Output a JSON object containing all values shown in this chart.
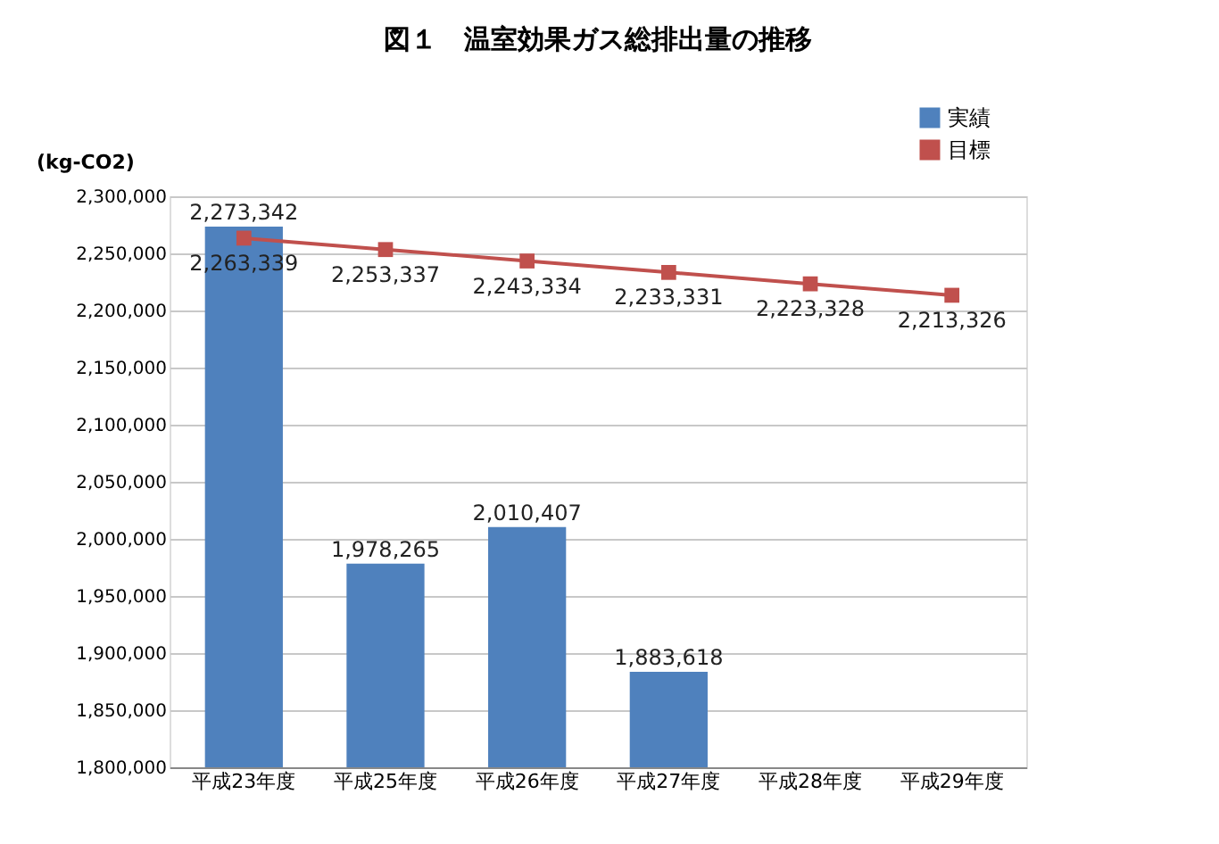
{
  "chart_data": {
    "type": "bar",
    "title": "図１　温室効果ガス総排出量の推移",
    "ylabel": "(kg-CO2)",
    "categories": [
      "平成23年度",
      "平成25年度",
      "平成26年度",
      "平成27年度",
      "平成28年度",
      "平成29年度"
    ],
    "series": [
      {
        "name": "実績",
        "color": "#4f81bd",
        "values": [
          2273342,
          1978265,
          2010407,
          1883618,
          null,
          null
        ],
        "value_labels": [
          "2,273,342",
          "1,978,265",
          "2,010,407",
          "1,883,618",
          null,
          null
        ]
      },
      {
        "name": "目標",
        "type": "line",
        "color": "#c0504d",
        "marker": "square",
        "line_style": "solid",
        "values": [
          2263339,
          2253337,
          2243334,
          2233331,
          2223328,
          2213326
        ],
        "value_labels": [
          "2,263,339",
          "2,253,337",
          "2,243,334",
          "2,233,331",
          "2,223,328",
          "2,213,326"
        ]
      }
    ],
    "ylim": [
      1800000,
      2300000
    ],
    "yticks": [
      {
        "value": 1800000,
        "label": "1,800,000"
      },
      {
        "value": 1850000,
        "label": "1,850,000"
      },
      {
        "value": 1900000,
        "label": "1,900,000"
      },
      {
        "value": 1950000,
        "label": "1,950,000"
      },
      {
        "value": 2000000,
        "label": "2,000,000"
      },
      {
        "value": 2050000,
        "label": "2,050,000"
      },
      {
        "value": 2100000,
        "label": "2,100,000"
      },
      {
        "value": 2150000,
        "label": "2,150,000"
      },
      {
        "value": 2200000,
        "label": "2,200,000"
      },
      {
        "value": 2250000,
        "label": "2,250,000"
      },
      {
        "value": 2300000,
        "label": "2,300,000"
      }
    ],
    "grid": "y",
    "legend": "top right"
  }
}
